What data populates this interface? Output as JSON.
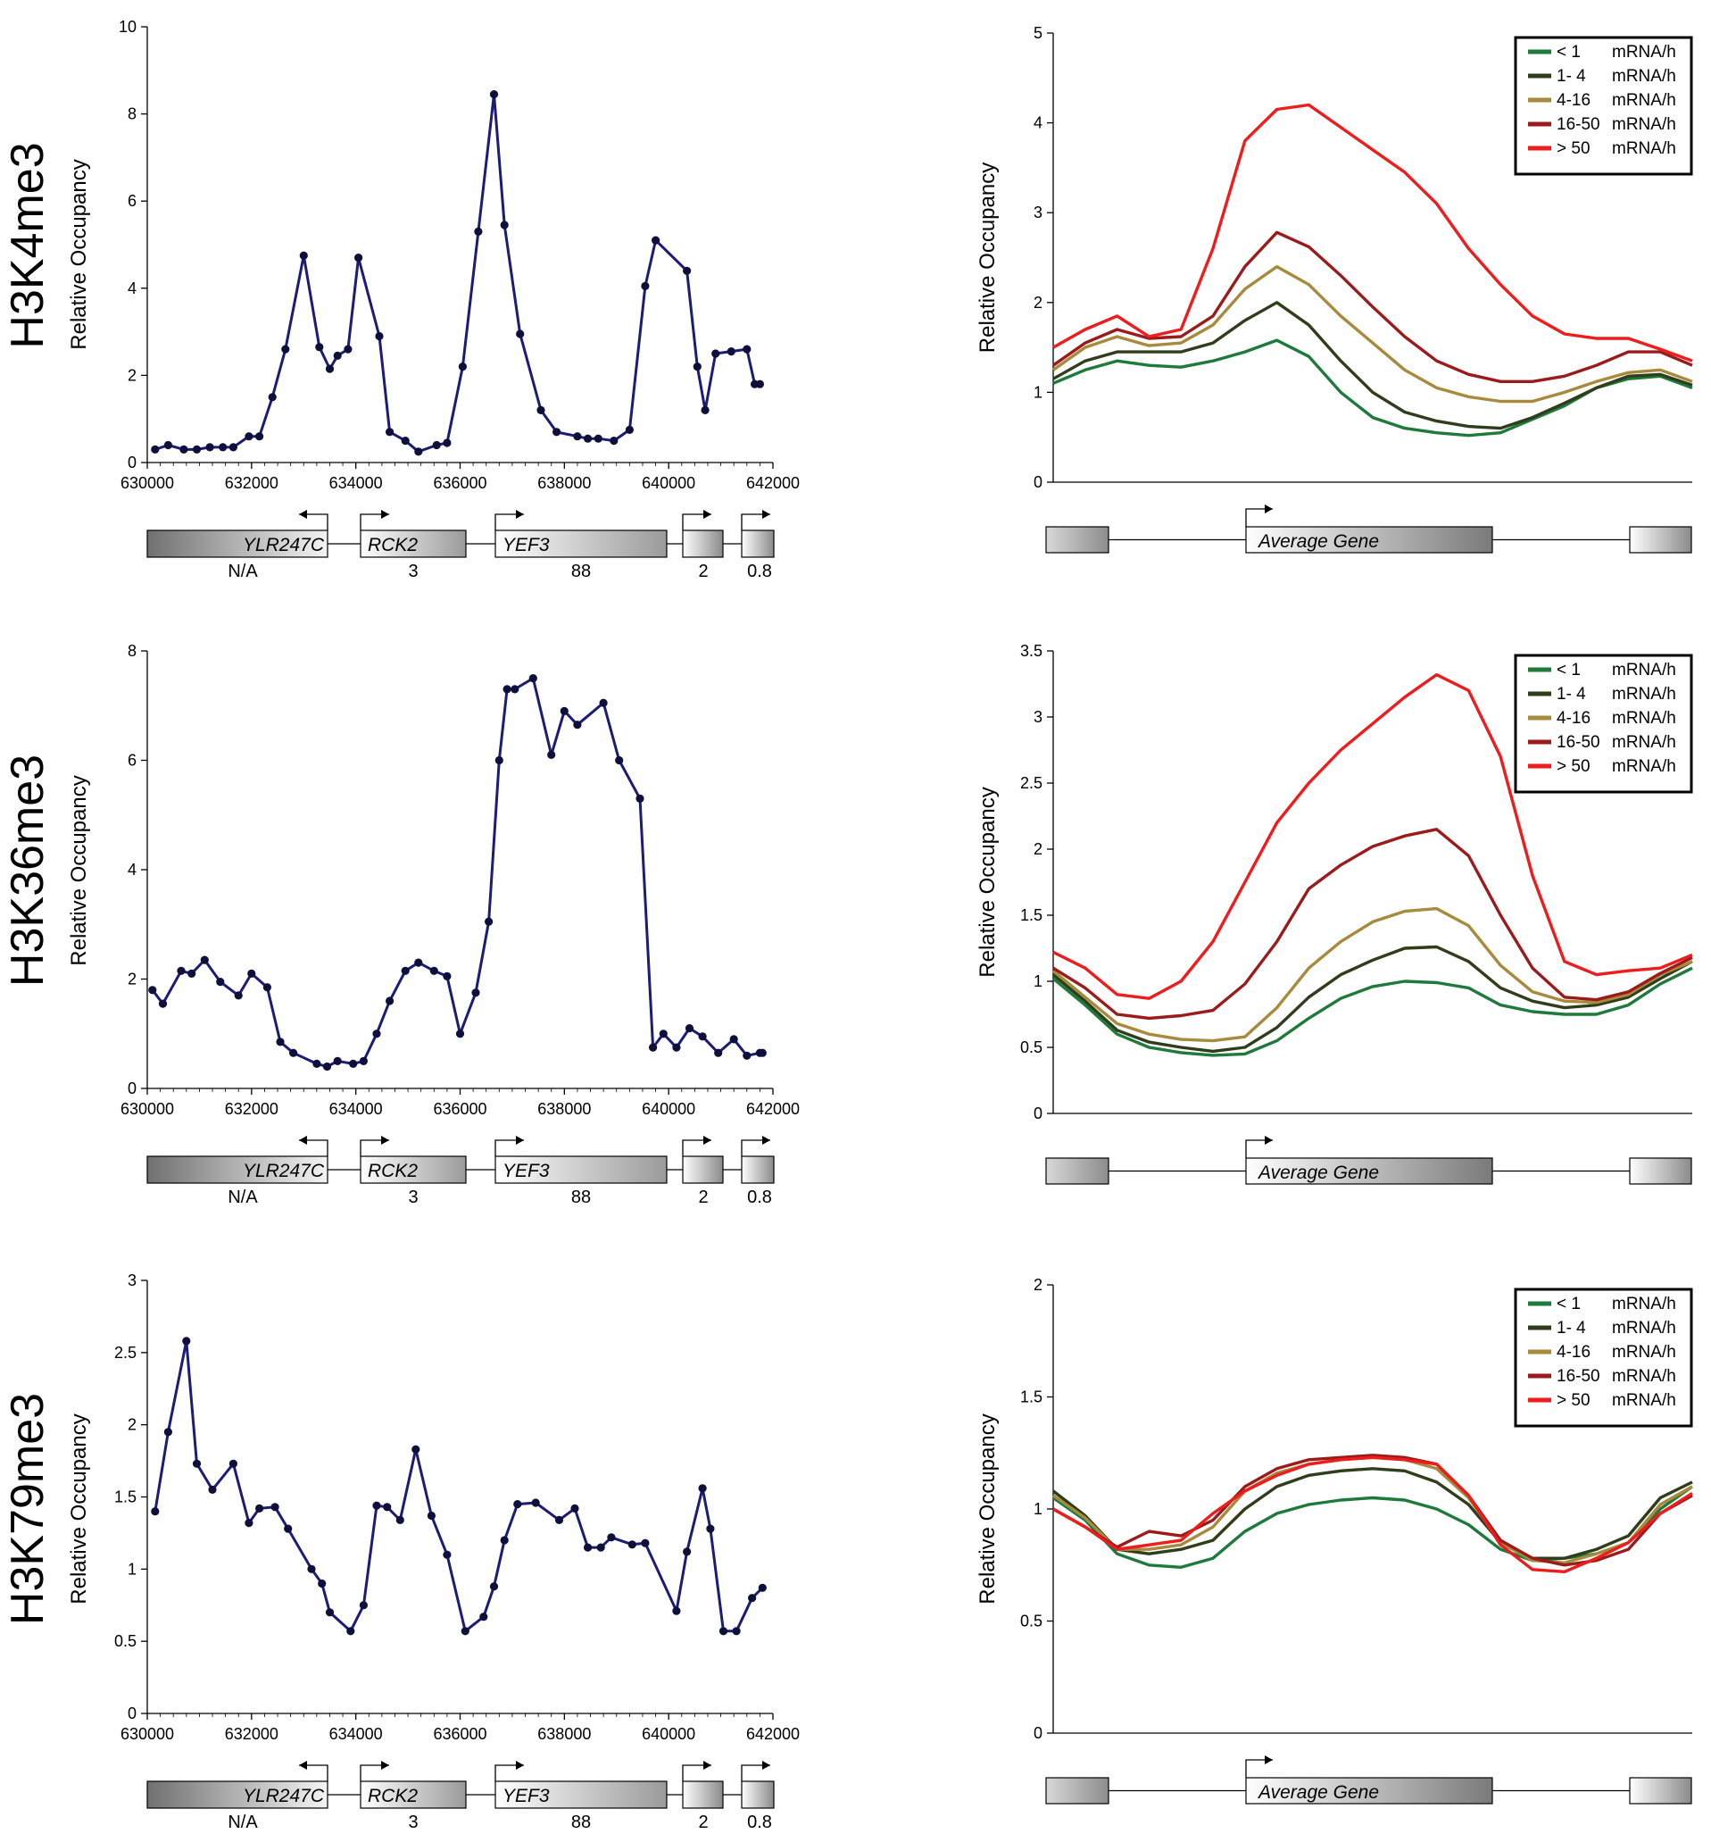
{
  "rows": [
    {
      "label": "H3K4me3"
    },
    {
      "label": "H3K36me3"
    },
    {
      "label": "H3K79me3"
    }
  ],
  "ylabel": "Relative Occupancy",
  "gene_map": {
    "genes": [
      "YLR247C",
      "RCK2",
      "YEF3"
    ],
    "rates": [
      "N/A",
      "3",
      "88",
      "2",
      "0.8"
    ]
  },
  "avg_gene_label": "Average Gene",
  "legend": [
    {
      "label": "< 1",
      "unit": "mRNA/h",
      "color": "#1e7a3a"
    },
    {
      "label": "1- 4",
      "unit": "mRNA/h",
      "color": "#2f3d1a"
    },
    {
      "label": "4-16",
      "unit": "mRNA/h",
      "color": "#a88a3c"
    },
    {
      "label": "16-50",
      "unit": "mRNA/h",
      "color": "#9b1b1b"
    },
    {
      "label": "> 50",
      "unit": "mRNA/h",
      "color": "#ee1c1c"
    }
  ],
  "colors": {
    "locus_line": "#1c1c78",
    "locus_marker": "#0f0f3c"
  },
  "chart_data": [
    {
      "type": "line",
      "row": 0,
      "panel": "locus",
      "xlim": [
        630000,
        642000
      ],
      "ylim": [
        0,
        10
      ],
      "xticks": [
        630000,
        632000,
        634000,
        636000,
        638000,
        640000,
        642000
      ],
      "yticks": [
        0,
        2,
        4,
        6,
        8,
        10
      ],
      "x": [
        630150,
        630400,
        630700,
        630950,
        631200,
        631450,
        631650,
        631950,
        632150,
        632400,
        632650,
        633000,
        633300,
        633500,
        633650,
        633850,
        634050,
        634450,
        634650,
        634950,
        635200,
        635550,
        635750,
        636050,
        636350,
        636650,
        636850,
        637150,
        637550,
        637850,
        638250,
        638450,
        638650,
        638950,
        639250,
        639550,
        639750,
        640350,
        640550,
        640700,
        640900,
        641200,
        641500,
        641650,
        641750
      ],
      "values": [
        0.3,
        0.4,
        0.3,
        0.3,
        0.35,
        0.35,
        0.35,
        0.6,
        0.6,
        1.5,
        2.6,
        4.75,
        2.65,
        2.15,
        2.45,
        2.6,
        4.7,
        2.9,
        0.7,
        0.5,
        0.25,
        0.4,
        0.45,
        2.2,
        5.3,
        8.45,
        5.45,
        2.95,
        1.2,
        0.7,
        0.6,
        0.55,
        0.55,
        0.5,
        0.75,
        4.05,
        5.1,
        4.4,
        2.2,
        1.2,
        2.5,
        2.55,
        2.6,
        1.8,
        1.8
      ]
    },
    {
      "type": "line",
      "row": 0,
      "panel": "average",
      "xlim": [
        0,
        100
      ],
      "ylim": [
        0,
        5
      ],
      "yticks": [
        0,
        1,
        2,
        3,
        4,
        5
      ],
      "x": [
        0,
        5,
        10,
        15,
        20,
        25,
        30,
        35,
        40,
        45,
        50,
        55,
        60,
        65,
        70,
        75,
        80,
        85,
        90,
        95,
        100
      ],
      "series": [
        {
          "name": "< 1",
          "values": [
            1.1,
            1.25,
            1.35,
            1.3,
            1.28,
            1.35,
            1.45,
            1.58,
            1.4,
            1.0,
            0.72,
            0.6,
            0.55,
            0.52,
            0.55,
            0.7,
            0.85,
            1.05,
            1.15,
            1.18,
            1.05
          ]
        },
        {
          "name": "1- 4",
          "values": [
            1.15,
            1.35,
            1.45,
            1.45,
            1.45,
            1.55,
            1.8,
            2.0,
            1.75,
            1.35,
            1.0,
            0.78,
            0.68,
            0.62,
            0.6,
            0.72,
            0.88,
            1.05,
            1.18,
            1.2,
            1.08
          ]
        },
        {
          "name": "4-16",
          "values": [
            1.25,
            1.5,
            1.62,
            1.52,
            1.55,
            1.75,
            2.15,
            2.4,
            2.2,
            1.85,
            1.55,
            1.25,
            1.05,
            0.95,
            0.9,
            0.9,
            1.0,
            1.12,
            1.22,
            1.25,
            1.12
          ]
        },
        {
          "name": "16-50",
          "values": [
            1.3,
            1.55,
            1.7,
            1.6,
            1.62,
            1.85,
            2.4,
            2.78,
            2.62,
            2.3,
            1.95,
            1.62,
            1.35,
            1.2,
            1.12,
            1.12,
            1.18,
            1.3,
            1.45,
            1.45,
            1.3
          ]
        },
        {
          "name": "> 50",
          "values": [
            1.5,
            1.7,
            1.85,
            1.62,
            1.7,
            2.6,
            3.8,
            4.15,
            4.2,
            3.95,
            3.7,
            3.45,
            3.1,
            2.6,
            2.2,
            1.85,
            1.65,
            1.6,
            1.6,
            1.48,
            1.35
          ]
        }
      ]
    },
    {
      "type": "line",
      "row": 1,
      "panel": "locus",
      "xlim": [
        630000,
        642000
      ],
      "ylim": [
        0,
        8
      ],
      "xticks": [
        630000,
        632000,
        634000,
        636000,
        638000,
        640000,
        642000
      ],
      "yticks": [
        0,
        2,
        4,
        6,
        8
      ],
      "x": [
        630100,
        630300,
        630650,
        630850,
        631100,
        631400,
        631750,
        632000,
        632300,
        632550,
        632800,
        633250,
        633450,
        633650,
        633950,
        634150,
        634400,
        634650,
        634950,
        635200,
        635500,
        635750,
        636000,
        636300,
        636550,
        636750,
        636900,
        637050,
        637400,
        637750,
        638000,
        638250,
        638750,
        639050,
        639450,
        639700,
        639900,
        640150,
        640400,
        640650,
        640950,
        641250,
        641500,
        641750,
        641800
      ],
      "values": [
        1.8,
        1.55,
        2.15,
        2.1,
        2.35,
        1.95,
        1.7,
        2.1,
        1.85,
        0.85,
        0.65,
        0.45,
        0.4,
        0.5,
        0.45,
        0.5,
        1.0,
        1.6,
        2.15,
        2.3,
        2.15,
        2.05,
        1.0,
        1.75,
        3.05,
        6.0,
        7.3,
        7.3,
        7.5,
        6.1,
        6.9,
        6.65,
        7.05,
        6.0,
        5.3,
        0.75,
        1.0,
        0.75,
        1.1,
        0.95,
        0.65,
        0.9,
        0.6,
        0.65,
        0.65
      ]
    },
    {
      "type": "line",
      "row": 1,
      "panel": "average",
      "xlim": [
        0,
        100
      ],
      "ylim": [
        0,
        3.5
      ],
      "yticks": [
        0,
        0.5,
        1,
        1.5,
        2,
        2.5,
        3,
        3.5
      ],
      "x": [
        0,
        5,
        10,
        15,
        20,
        25,
        30,
        35,
        40,
        45,
        50,
        55,
        60,
        65,
        70,
        75,
        80,
        85,
        90,
        95,
        100
      ],
      "series": [
        {
          "name": "< 1",
          "values": [
            1.02,
            0.82,
            0.6,
            0.5,
            0.46,
            0.44,
            0.45,
            0.55,
            0.72,
            0.87,
            0.96,
            1.0,
            0.99,
            0.95,
            0.82,
            0.77,
            0.75,
            0.75,
            0.82,
            0.98,
            1.1
          ]
        },
        {
          "name": "1- 4",
          "values": [
            1.05,
            0.85,
            0.63,
            0.54,
            0.5,
            0.47,
            0.5,
            0.65,
            0.88,
            1.05,
            1.16,
            1.25,
            1.26,
            1.15,
            0.95,
            0.85,
            0.8,
            0.82,
            0.88,
            1.02,
            1.15
          ]
        },
        {
          "name": "4-16",
          "values": [
            1.08,
            0.88,
            0.68,
            0.6,
            0.56,
            0.55,
            0.58,
            0.8,
            1.1,
            1.3,
            1.45,
            1.53,
            1.55,
            1.42,
            1.12,
            0.92,
            0.85,
            0.84,
            0.9,
            1.05,
            1.15
          ]
        },
        {
          "name": "16-50",
          "values": [
            1.1,
            0.95,
            0.75,
            0.72,
            0.74,
            0.78,
            0.98,
            1.3,
            1.7,
            1.88,
            2.02,
            2.1,
            2.15,
            1.95,
            1.5,
            1.1,
            0.88,
            0.86,
            0.92,
            1.06,
            1.18
          ]
        },
        {
          "name": "> 50",
          "values": [
            1.22,
            1.1,
            0.9,
            0.87,
            1.0,
            1.3,
            1.75,
            2.2,
            2.5,
            2.75,
            2.95,
            3.15,
            3.32,
            3.2,
            2.7,
            1.8,
            1.15,
            1.05,
            1.08,
            1.1,
            1.2
          ]
        }
      ]
    },
    {
      "type": "line",
      "row": 2,
      "panel": "locus",
      "xlim": [
        630000,
        642000
      ],
      "ylim": [
        0,
        3
      ],
      "xticks": [
        630000,
        632000,
        634000,
        636000,
        638000,
        640000,
        642000
      ],
      "yticks": [
        0,
        0.5,
        1,
        1.5,
        2,
        2.5,
        3
      ],
      "x": [
        630150,
        630400,
        630750,
        630950,
        631250,
        631650,
        631950,
        632150,
        632450,
        632700,
        633150,
        633350,
        633500,
        633900,
        634150,
        634400,
        634600,
        634850,
        635150,
        635450,
        635750,
        636100,
        636450,
        636650,
        636850,
        637100,
        637450,
        637900,
        638200,
        638450,
        638700,
        638900,
        639300,
        639550,
        640150,
        640350,
        640650,
        640800,
        641050,
        641300,
        641600,
        641800
      ],
      "values": [
        1.4,
        1.95,
        2.58,
        1.73,
        1.55,
        1.73,
        1.32,
        1.42,
        1.43,
        1.28,
        1.0,
        0.9,
        0.7,
        0.57,
        0.75,
        1.44,
        1.43,
        1.34,
        1.83,
        1.37,
        1.1,
        0.57,
        0.67,
        0.88,
        1.2,
        1.45,
        1.46,
        1.34,
        1.42,
        1.15,
        1.15,
        1.22,
        1.17,
        1.18,
        0.71,
        1.12,
        1.56,
        1.28,
        0.57,
        0.57,
        0.8,
        0.87
      ]
    },
    {
      "type": "line",
      "row": 2,
      "panel": "average",
      "xlim": [
        0,
        100
      ],
      "ylim": [
        0,
        2
      ],
      "yticks": [
        0,
        0.5,
        1,
        1.5,
        2
      ],
      "x": [
        0,
        5,
        10,
        15,
        20,
        25,
        30,
        35,
        40,
        45,
        50,
        55,
        60,
        65,
        70,
        75,
        80,
        85,
        90,
        95,
        100
      ],
      "series": [
        {
          "name": "< 1",
          "values": [
            1.05,
            0.95,
            0.8,
            0.75,
            0.74,
            0.78,
            0.9,
            0.98,
            1.02,
            1.04,
            1.05,
            1.04,
            1.0,
            0.93,
            0.82,
            0.77,
            0.78,
            0.8,
            0.85,
            1.0,
            1.1
          ]
        },
        {
          "name": "1- 4",
          "values": [
            1.08,
            0.97,
            0.82,
            0.8,
            0.82,
            0.86,
            1.0,
            1.1,
            1.15,
            1.17,
            1.18,
            1.17,
            1.12,
            1.02,
            0.85,
            0.78,
            0.78,
            0.82,
            0.88,
            1.05,
            1.12
          ]
        },
        {
          "name": "4-16",
          "values": [
            1.06,
            0.96,
            0.82,
            0.82,
            0.84,
            0.92,
            1.08,
            1.16,
            1.2,
            1.22,
            1.23,
            1.22,
            1.18,
            1.05,
            0.85,
            0.77,
            0.76,
            0.8,
            0.85,
            1.02,
            1.1
          ]
        },
        {
          "name": "16-50",
          "values": [
            1.0,
            0.92,
            0.83,
            0.9,
            0.88,
            0.95,
            1.1,
            1.18,
            1.22,
            1.23,
            1.24,
            1.23,
            1.2,
            1.06,
            0.86,
            0.78,
            0.75,
            0.77,
            0.82,
            0.98,
            1.06
          ]
        },
        {
          "name": "> 50",
          "values": [
            1.0,
            0.92,
            0.82,
            0.84,
            0.86,
            0.98,
            1.08,
            1.15,
            1.2,
            1.22,
            1.23,
            1.22,
            1.2,
            1.06,
            0.84,
            0.73,
            0.72,
            0.78,
            0.85,
            0.98,
            1.07
          ]
        }
      ]
    }
  ]
}
